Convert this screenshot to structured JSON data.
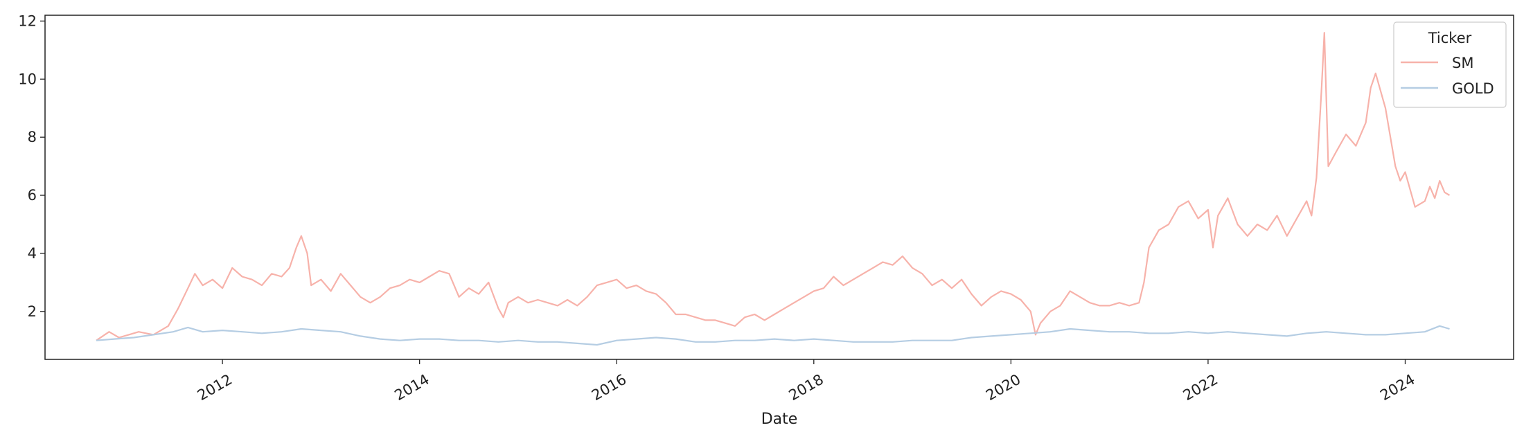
{
  "chart_data": {
    "type": "line",
    "title": "",
    "xlabel": "Date",
    "ylabel": "",
    "x_tick_labels": [
      "2012",
      "2014",
      "2016",
      "2018",
      "2020",
      "2022",
      "2024"
    ],
    "x_ticks": [
      2012,
      2014,
      2016,
      2018,
      2020,
      2022,
      2024
    ],
    "y_tick_labels": [
      "2",
      "4",
      "6",
      "8",
      "10",
      "12"
    ],
    "y_ticks": [
      2,
      4,
      6,
      8,
      10,
      12
    ],
    "xlim": [
      2010.2,
      2025.1
    ],
    "ylim": [
      0.35,
      12.2
    ],
    "grid": false,
    "legend": {
      "title": "Ticker",
      "placement": "top-right"
    },
    "series": [
      {
        "name": "SM",
        "color": "#f7b2aa",
        "x": [
          2010.72,
          2010.85,
          2010.95,
          2011.05,
          2011.15,
          2011.3,
          2011.45,
          2011.55,
          2011.65,
          2011.72,
          2011.8,
          2011.9,
          2012.0,
          2012.1,
          2012.2,
          2012.3,
          2012.4,
          2012.5,
          2012.6,
          2012.68,
          2012.75,
          2012.8,
          2012.86,
          2012.9,
          2013.0,
          2013.1,
          2013.2,
          2013.3,
          2013.4,
          2013.5,
          2013.6,
          2013.7,
          2013.8,
          2013.9,
          2014.0,
          2014.1,
          2014.2,
          2014.3,
          2014.4,
          2014.5,
          2014.6,
          2014.7,
          2014.8,
          2014.85,
          2014.9,
          2015.0,
          2015.1,
          2015.2,
          2015.3,
          2015.4,
          2015.5,
          2015.6,
          2015.7,
          2015.8,
          2015.9,
          2016.0,
          2016.1,
          2016.2,
          2016.3,
          2016.4,
          2016.5,
          2016.6,
          2016.7,
          2016.8,
          2016.9,
          2017.0,
          2017.1,
          2017.2,
          2017.3,
          2017.4,
          2017.5,
          2017.6,
          2017.7,
          2017.8,
          2017.9,
          2018.0,
          2018.1,
          2018.2,
          2018.3,
          2018.4,
          2018.5,
          2018.6,
          2018.7,
          2018.8,
          2018.9,
          2019.0,
          2019.1,
          2019.2,
          2019.3,
          2019.4,
          2019.5,
          2019.6,
          2019.7,
          2019.8,
          2019.9,
          2020.0,
          2020.1,
          2020.2,
          2020.25,
          2020.3,
          2020.4,
          2020.5,
          2020.6,
          2020.7,
          2020.8,
          2020.9,
          2021.0,
          2021.1,
          2021.2,
          2021.3,
          2021.35,
          2021.4,
          2021.5,
          2021.6,
          2021.7,
          2021.8,
          2021.9,
          2022.0,
          2022.05,
          2022.1,
          2022.2,
          2022.3,
          2022.4,
          2022.5,
          2022.6,
          2022.7,
          2022.8,
          2022.9,
          2023.0,
          2023.05,
          2023.1,
          2023.15,
          2023.18,
          2023.22,
          2023.3,
          2023.4,
          2023.5,
          2023.6,
          2023.65,
          2023.7,
          2023.8,
          2023.9,
          2023.95,
          2024.0,
          2024.1,
          2024.2,
          2024.25,
          2024.3,
          2024.35,
          2024.4,
          2024.45
        ],
        "y": [
          1.0,
          1.3,
          1.1,
          1.2,
          1.3,
          1.2,
          1.5,
          2.1,
          2.8,
          3.3,
          2.9,
          3.1,
          2.8,
          3.5,
          3.2,
          3.1,
          2.9,
          3.3,
          3.2,
          3.5,
          4.2,
          4.6,
          4.0,
          2.9,
          3.1,
          2.7,
          3.3,
          2.9,
          2.5,
          2.3,
          2.5,
          2.8,
          2.9,
          3.1,
          3.0,
          3.2,
          3.4,
          3.3,
          2.5,
          2.8,
          2.6,
          3.0,
          2.1,
          1.8,
          2.3,
          2.5,
          2.3,
          2.4,
          2.3,
          2.2,
          2.4,
          2.2,
          2.5,
          2.9,
          3.0,
          3.1,
          2.8,
          2.9,
          2.7,
          2.6,
          2.3,
          1.9,
          1.9,
          1.8,
          1.7,
          1.7,
          1.6,
          1.5,
          1.8,
          1.9,
          1.7,
          1.9,
          2.1,
          2.3,
          2.5,
          2.7,
          2.8,
          3.2,
          2.9,
          3.1,
          3.3,
          3.5,
          3.7,
          3.6,
          3.9,
          3.5,
          3.3,
          2.9,
          3.1,
          2.8,
          3.1,
          2.6,
          2.2,
          2.5,
          2.7,
          2.6,
          2.4,
          2.0,
          1.2,
          1.6,
          2.0,
          2.2,
          2.7,
          2.5,
          2.3,
          2.2,
          2.2,
          2.3,
          2.2,
          2.3,
          3.0,
          4.2,
          4.8,
          5.0,
          5.6,
          5.8,
          5.2,
          5.5,
          4.2,
          5.3,
          5.9,
          5.0,
          4.6,
          5.0,
          4.8,
          5.3,
          4.6,
          5.2,
          5.8,
          5.3,
          6.6,
          9.6,
          11.6,
          7.0,
          7.5,
          8.1,
          7.7,
          8.5,
          9.7,
          10.2,
          9.0,
          7.0,
          6.5,
          6.8,
          5.6,
          5.8,
          6.3,
          5.9,
          6.5,
          6.1,
          6.0
        ]
      },
      {
        "name": "GOLD",
        "color": "#b5cde3",
        "x": [
          2010.72,
          2010.9,
          2011.1,
          2011.3,
          2011.5,
          2011.65,
          2011.8,
          2012.0,
          2012.2,
          2012.4,
          2012.6,
          2012.8,
          2013.0,
          2013.2,
          2013.4,
          2013.6,
          2013.8,
          2014.0,
          2014.2,
          2014.4,
          2014.6,
          2014.8,
          2015.0,
          2015.2,
          2015.4,
          2015.6,
          2015.8,
          2016.0,
          2016.2,
          2016.4,
          2016.6,
          2016.8,
          2017.0,
          2017.2,
          2017.4,
          2017.6,
          2017.8,
          2018.0,
          2018.2,
          2018.4,
          2018.6,
          2018.8,
          2019.0,
          2019.2,
          2019.4,
          2019.6,
          2019.8,
          2020.0,
          2020.2,
          2020.4,
          2020.6,
          2020.8,
          2021.0,
          2021.2,
          2021.4,
          2021.6,
          2021.8,
          2022.0,
          2022.2,
          2022.4,
          2022.6,
          2022.8,
          2023.0,
          2023.2,
          2023.4,
          2023.6,
          2023.8,
          2024.0,
          2024.2,
          2024.35,
          2024.45
        ],
        "y": [
          1.0,
          1.05,
          1.1,
          1.2,
          1.3,
          1.45,
          1.3,
          1.35,
          1.3,
          1.25,
          1.3,
          1.4,
          1.35,
          1.3,
          1.15,
          1.05,
          1.0,
          1.05,
          1.05,
          1.0,
          1.0,
          0.95,
          1.0,
          0.95,
          0.95,
          0.9,
          0.85,
          1.0,
          1.05,
          1.1,
          1.05,
          0.95,
          0.95,
          1.0,
          1.0,
          1.05,
          1.0,
          1.05,
          1.0,
          0.95,
          0.95,
          0.95,
          1.0,
          1.0,
          1.0,
          1.1,
          1.15,
          1.2,
          1.25,
          1.3,
          1.4,
          1.35,
          1.3,
          1.3,
          1.25,
          1.25,
          1.3,
          1.25,
          1.3,
          1.25,
          1.2,
          1.15,
          1.25,
          1.3,
          1.25,
          1.2,
          1.2,
          1.25,
          1.3,
          1.5,
          1.4
        ]
      }
    ]
  }
}
